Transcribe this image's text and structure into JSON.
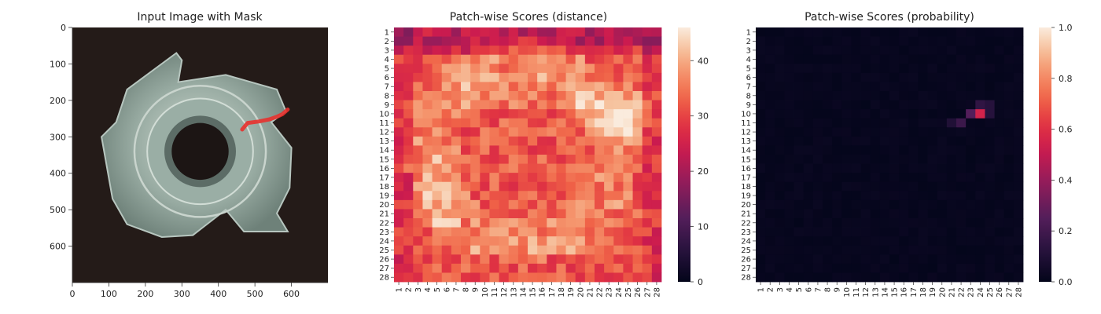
{
  "chart_data": [
    {
      "type": "image",
      "title": "Input Image with Mask",
      "xlim": [
        0,
        700
      ],
      "ylim": [
        700,
        0
      ],
      "xticks": [
        "0",
        "100",
        "200",
        "300",
        "400",
        "500",
        "600"
      ],
      "yticks": [
        "0",
        "100",
        "200",
        "300",
        "400",
        "500",
        "600"
      ],
      "mask_color": "#e8312d",
      "mask_polyline": [
        [
          465,
          280
        ],
        [
          480,
          262
        ],
        [
          510,
          258
        ],
        [
          540,
          252
        ],
        [
          560,
          245
        ],
        [
          575,
          238
        ],
        [
          590,
          225
        ]
      ]
    },
    {
      "type": "heatmap",
      "title": "Patch-wise Scores (distance)",
      "labels": [
        "1",
        "2",
        "3",
        "4",
        "5",
        "6",
        "7",
        "8",
        "9",
        "10",
        "11",
        "12",
        "13",
        "14",
        "15",
        "16",
        "17",
        "18",
        "19",
        "20",
        "21",
        "22",
        "23",
        "24",
        "25",
        "26",
        "27",
        "28"
      ],
      "vmin": 0,
      "vmax": 46,
      "colorbar_ticks": [
        "0",
        "10",
        "20",
        "30",
        "40"
      ],
      "colormap": "rocket",
      "hotspot": {
        "row": 10,
        "col": 24,
        "value": 45
      }
    },
    {
      "type": "heatmap",
      "title": "Patch-wise Scores (probability)",
      "labels": [
        "1",
        "2",
        "3",
        "4",
        "5",
        "6",
        "7",
        "8",
        "9",
        "10",
        "11",
        "12",
        "13",
        "14",
        "15",
        "16",
        "17",
        "18",
        "19",
        "20",
        "21",
        "22",
        "23",
        "24",
        "25",
        "26",
        "27",
        "28"
      ],
      "vmin": 0,
      "vmax": 1,
      "colorbar_ticks": [
        "0.0",
        "0.2",
        "0.4",
        "0.6",
        "0.8",
        "1.0"
      ],
      "colormap": "rocket",
      "hotspots": [
        {
          "row": 10,
          "col": 24,
          "value": 0.55
        },
        {
          "row": 10,
          "col": 23,
          "value": 0.25
        },
        {
          "row": 9,
          "col": 24,
          "value": 0.15
        },
        {
          "row": 9,
          "col": 25,
          "value": 0.12
        },
        {
          "row": 11,
          "col": 22,
          "value": 0.18
        },
        {
          "row": 11,
          "col": 21,
          "value": 0.1
        },
        {
          "row": 10,
          "col": 25,
          "value": 0.12
        }
      ]
    }
  ]
}
